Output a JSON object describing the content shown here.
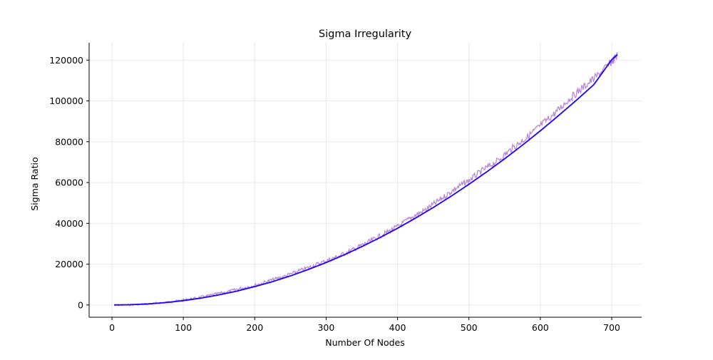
{
  "chart_data": {
    "type": "line",
    "title": "Sigma Irregularity",
    "xlabel": "Number Of Nodes",
    "ylabel": "Sigma Ratio",
    "xlim": [
      -32,
      742
    ],
    "ylim": [
      -6000,
      128500
    ],
    "xticks": [
      0,
      100,
      200,
      300,
      400,
      500,
      600,
      700
    ],
    "yticks": [
      0,
      20000,
      40000,
      60000,
      80000,
      100000,
      120000
    ],
    "grid": true,
    "legend": "none",
    "colors": {
      "data": "#b07ad0",
      "fit": "#1a00ff",
      "grid": "#ebebeb",
      "axis": "#000000"
    },
    "series": [
      {
        "style": "noisy-line",
        "x": [
          3,
          20,
          40,
          60,
          80,
          100,
          120,
          140,
          160,
          180,
          200,
          220,
          240,
          260,
          280,
          300,
          320,
          340,
          360,
          380,
          400,
          420,
          440,
          460,
          480,
          500,
          520,
          540,
          560,
          580,
          600,
          620,
          640,
          660,
          680,
          700,
          708
        ],
        "y": [
          0,
          60,
          300,
          800,
          1500,
          2400,
          3500,
          4900,
          6300,
          8100,
          9600,
          11800,
          13800,
          16400,
          19000,
          21600,
          24300,
          27500,
          31000,
          34700,
          38400,
          43000,
          46800,
          51700,
          56800,
          61000,
          66200,
          70600,
          76600,
          81800,
          87900,
          93800,
          100800,
          106600,
          112400,
          119200,
          122500
        ]
      },
      {
        "style": "fit-line",
        "x": [
          3,
          25,
          50,
          75,
          100,
          125,
          150,
          175,
          200,
          225,
          250,
          275,
          300,
          325,
          350,
          375,
          400,
          425,
          450,
          475,
          500,
          525,
          550,
          575,
          600,
          625,
          650,
          675,
          700,
          708
        ],
        "y": [
          0,
          120,
          500,
          1150,
          2150,
          3400,
          4950,
          6800,
          9000,
          11450,
          14250,
          17400,
          20800,
          24550,
          28600,
          32950,
          37600,
          42550,
          47750,
          53300,
          59150,
          65250,
          71650,
          78350,
          85350,
          92650,
          100200,
          108000,
          120200,
          122700
        ]
      }
    ]
  }
}
